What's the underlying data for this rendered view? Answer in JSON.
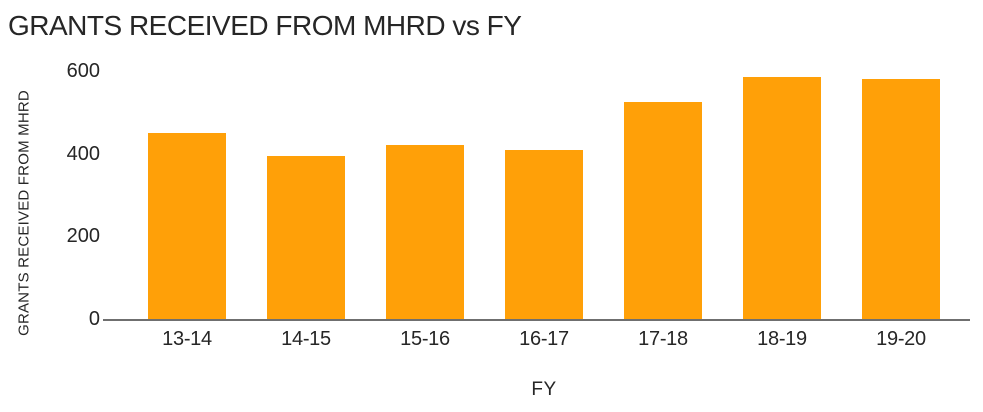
{
  "chart_data": {
    "type": "bar",
    "title": "GRANTS RECEIVED FROM MHRD vs FY",
    "xlabel": "FY",
    "ylabel": "GRANTS RECEIVED FROM MHRD",
    "categories": [
      "13-14",
      "14-15",
      "15-16",
      "16-17",
      "17-18",
      "18-19",
      "19-20"
    ],
    "values": [
      450,
      395,
      420,
      410,
      525,
      585,
      580
    ],
    "yticks": [
      0,
      200,
      400,
      600
    ],
    "ylim": [
      0,
      600
    ],
    "grid": false,
    "legend": "none",
    "bar_color": "#FFA008",
    "axis_line_color": "#6F6F6F",
    "text_color": "#262626",
    "background_color": "#FFFFFF"
  }
}
